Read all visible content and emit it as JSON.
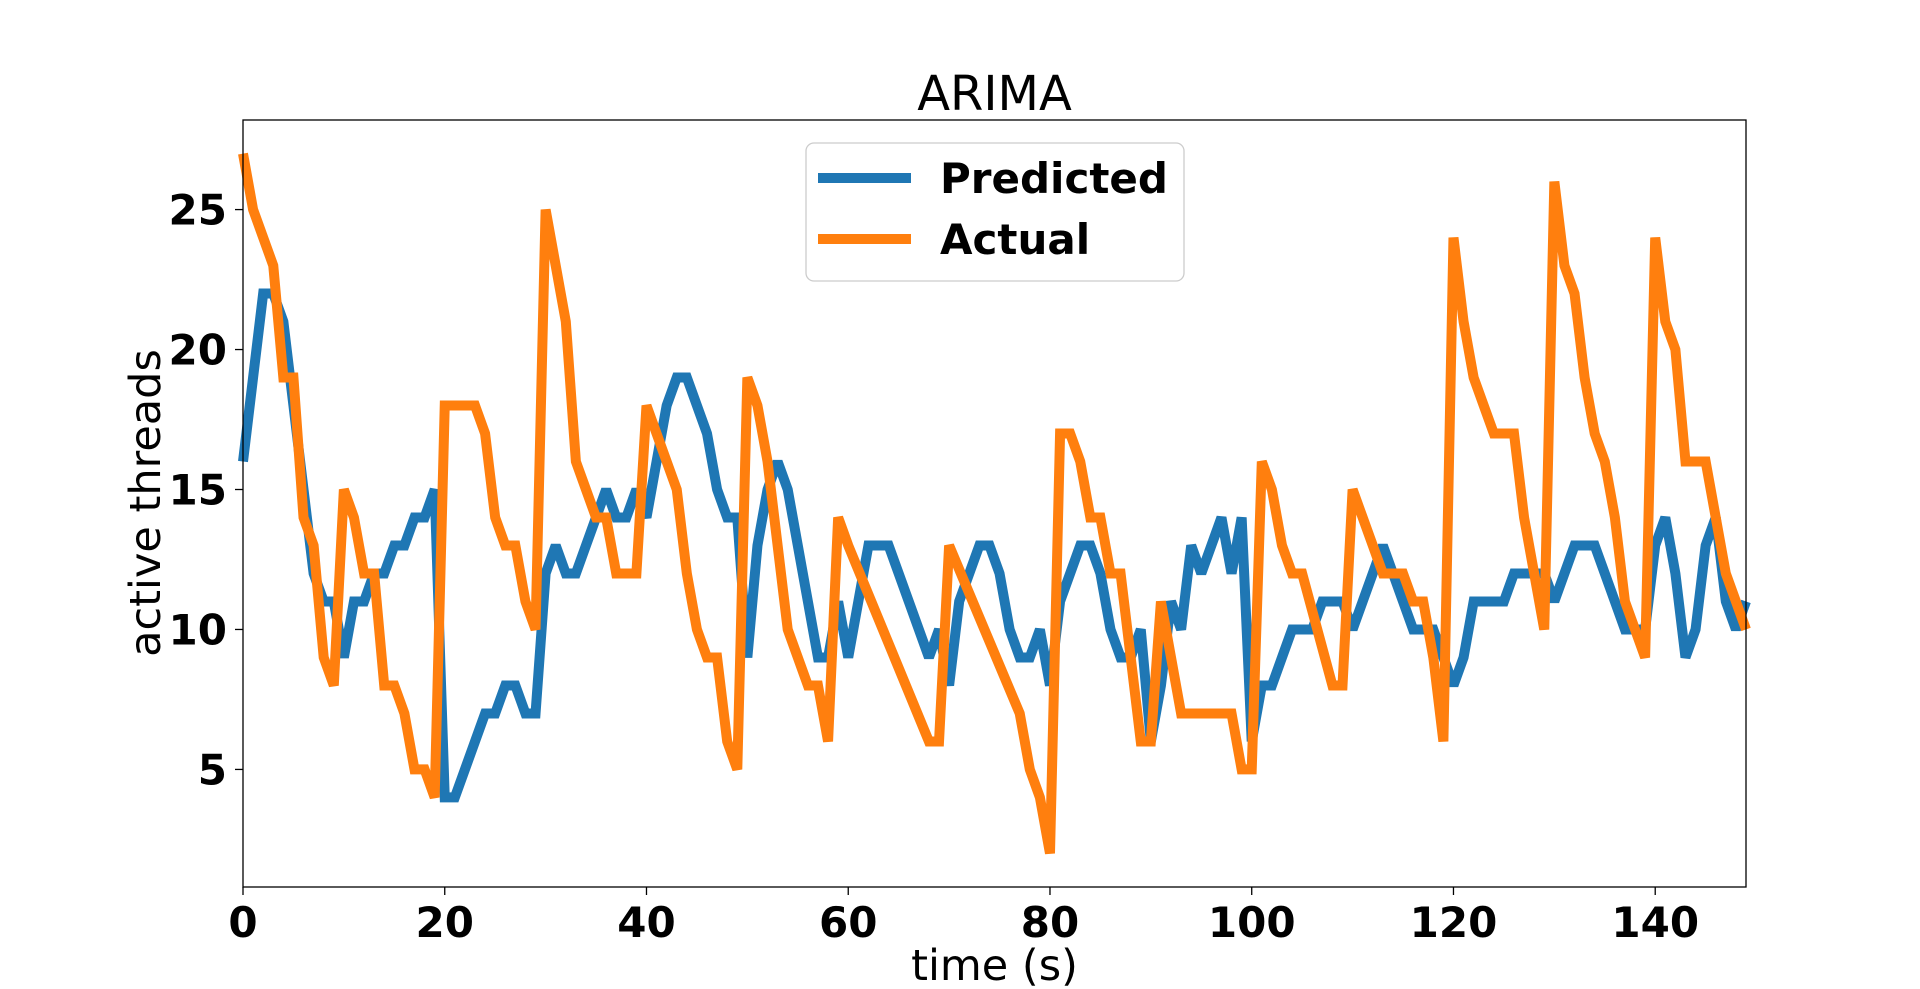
{
  "chart_data": {
    "type": "line",
    "title": "ARIMA",
    "xlabel": "time (s)",
    "ylabel": "active threads",
    "xlim": [
      0,
      149
    ],
    "ylim": [
      0.8,
      28.2
    ],
    "xticks": [
      0,
      20,
      40,
      60,
      80,
      100,
      120,
      140
    ],
    "yticks": [
      5,
      10,
      15,
      20,
      25
    ],
    "grid": false,
    "legend_position": "top-center",
    "series": [
      {
        "name": "Predicted",
        "color": "#1f77b4",
        "x": [
          0,
          1,
          2,
          3,
          4,
          5,
          6,
          7,
          8,
          9,
          10,
          11,
          12,
          13,
          14,
          15,
          16,
          17,
          18,
          19,
          20,
          21,
          22,
          23,
          24,
          25,
          26,
          27,
          28,
          29,
          30,
          31,
          32,
          33,
          34,
          35,
          36,
          37,
          38,
          39,
          40,
          41,
          42,
          43,
          44,
          45,
          46,
          47,
          48,
          49,
          50,
          51,
          52,
          53,
          54,
          55,
          56,
          57,
          58,
          59,
          60,
          61,
          62,
          63,
          64,
          65,
          66,
          67,
          68,
          69,
          70,
          71,
          72,
          73,
          74,
          75,
          76,
          77,
          78,
          79,
          80,
          81,
          82,
          83,
          84,
          85,
          86,
          87,
          88,
          89,
          90,
          91,
          92,
          93,
          94,
          95,
          96,
          97,
          98,
          99,
          100,
          101,
          102,
          103,
          104,
          105,
          106,
          107,
          108,
          109,
          110,
          111,
          112,
          113,
          114,
          115,
          116,
          117,
          118,
          119,
          120,
          121,
          122,
          123,
          124,
          125,
          126,
          127,
          128,
          129,
          130,
          131,
          132,
          133,
          134,
          135,
          136,
          137,
          138,
          139,
          140,
          141,
          142,
          143,
          144,
          145,
          146,
          147,
          148,
          149
        ],
        "values": [
          16,
          19,
          22,
          22,
          21,
          18,
          15,
          12,
          11,
          11,
          9,
          11,
          11,
          12,
          12,
          13,
          13,
          14,
          14,
          15,
          4,
          4,
          5,
          6,
          7,
          7,
          8,
          8,
          7,
          7,
          12,
          13,
          12,
          12,
          13,
          14,
          15,
          14,
          14,
          15,
          14,
          16,
          18,
          19,
          19,
          18,
          17,
          15,
          14,
          14,
          9,
          13,
          15,
          16,
          15,
          13,
          11,
          9,
          9,
          11,
          9,
          11,
          13,
          13,
          13,
          12,
          11,
          10,
          9,
          10,
          8,
          11,
          12,
          13,
          13,
          12,
          10,
          9,
          9,
          10,
          8,
          11,
          12,
          13,
          13,
          12,
          10,
          9,
          9,
          10,
          6,
          8,
          11,
          10,
          13,
          12,
          13,
          14,
          12,
          14,
          6,
          8,
          8,
          9,
          10,
          10,
          10,
          11,
          11,
          11,
          10,
          11,
          12,
          13,
          12,
          11,
          10,
          10,
          10,
          9,
          8,
          9,
          11,
          11,
          11,
          11,
          12,
          12,
          12,
          12,
          11,
          12,
          13,
          13,
          13,
          12,
          11,
          10,
          10,
          10,
          13,
          14,
          12,
          9,
          10,
          13,
          14,
          11,
          10,
          11
        ]
      },
      {
        "name": "Actual",
        "color": "#ff7f0e",
        "x": [
          0,
          1,
          2,
          3,
          4,
          5,
          6,
          7,
          8,
          9,
          10,
          11,
          12,
          13,
          14,
          15,
          16,
          17,
          18,
          19,
          20,
          21,
          22,
          23,
          24,
          25,
          26,
          27,
          28,
          29,
          30,
          31,
          32,
          33,
          34,
          35,
          36,
          37,
          38,
          39,
          40,
          41,
          42,
          43,
          44,
          45,
          46,
          47,
          48,
          49,
          50,
          51,
          52,
          53,
          54,
          55,
          56,
          57,
          58,
          59,
          60,
          68,
          69,
          70,
          77,
          78,
          79,
          80,
          81,
          82,
          83,
          84,
          85,
          86,
          87,
          88,
          89,
          90,
          91,
          92,
          93,
          94,
          95,
          96,
          97,
          98,
          99,
          100,
          101,
          102,
          103,
          104,
          105,
          108,
          109,
          110,
          111,
          112,
          113,
          114,
          115,
          116,
          117,
          118,
          119,
          120,
          121,
          122,
          123,
          124,
          125,
          126,
          127,
          128,
          129,
          130,
          131,
          132,
          133,
          134,
          135,
          136,
          137,
          138,
          139,
          140,
          141,
          142,
          143,
          144,
          145,
          146,
          147,
          148,
          149
        ],
        "values": [
          27,
          25,
          24,
          23,
          19,
          19,
          14,
          13,
          9,
          8,
          15,
          14,
          12,
          12,
          8,
          8,
          7,
          5,
          5,
          4,
          18,
          18,
          18,
          18,
          17,
          14,
          13,
          13,
          11,
          10,
          25,
          23,
          21,
          16,
          15,
          14,
          14,
          12,
          12,
          12,
          18,
          17,
          16,
          15,
          12,
          10,
          9,
          9,
          6,
          5,
          19,
          18,
          16,
          13,
          10,
          9,
          8,
          8,
          6,
          14,
          13,
          6,
          6,
          13,
          7,
          5,
          4,
          2,
          17,
          17,
          16,
          14,
          14,
          12,
          12,
          9,
          6,
          6,
          11,
          9,
          7,
          7,
          7,
          7,
          7,
          7,
          5,
          5,
          16,
          15,
          13,
          12,
          12,
          8,
          8,
          15,
          14,
          13,
          12,
          12,
          12,
          11,
          11,
          9,
          6,
          24,
          21,
          19,
          18,
          17,
          17,
          17,
          14,
          12,
          10,
          26,
          23,
          22,
          19,
          17,
          16,
          14,
          11,
          10,
          9,
          24,
          21,
          20,
          16,
          16,
          16,
          14,
          12,
          11,
          10
        ]
      }
    ]
  }
}
